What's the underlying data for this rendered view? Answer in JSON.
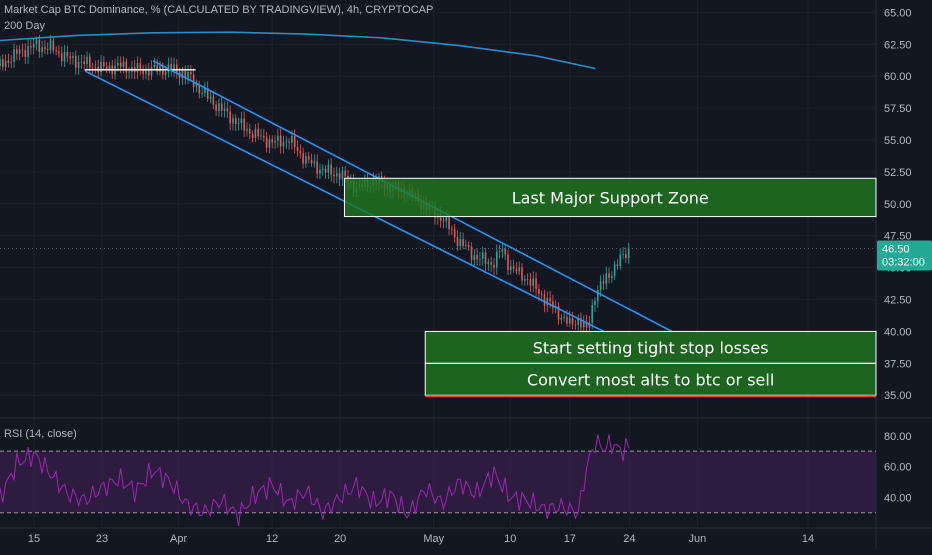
{
  "header": {
    "title": "Market Cap BTC Dominance, % (CALCULATED BY TRADINGVIEW), 4h, CRYPTOCAP",
    "ma_label": "200 Day",
    "rsi_label": "RSI (14, close)"
  },
  "price_badge": {
    "value": "46.50",
    "countdown": "03:32:00",
    "color": "#22ab94"
  },
  "colors": {
    "background": "#131722",
    "channel": "#2196f3",
    "ma": "#2b8cc4",
    "zone_fill": "#1f7a1f",
    "zone_border": "#ffffff",
    "stop_line": "#f44336",
    "rsi_line": "#9c27b0",
    "rsi_band": "#3a1f4d",
    "candle_up": "#26a69a",
    "candle_down": "#ef5350"
  },
  "chart_data": [
    {
      "type": "line",
      "title": "Market Cap BTC Dominance, % (CALCULATED BY TRADINGVIEW), 4h, CRYPTOCAP",
      "y_ticks": [
        "65.00",
        "62.50",
        "60.00",
        "57.50",
        "55.00",
        "52.50",
        "50.00",
        "47.50",
        "45.00",
        "42.50",
        "40.00",
        "37.50",
        "35.00"
      ],
      "ylim": [
        34,
        65.5
      ],
      "x_ticks": [
        "15",
        "23",
        "Apr",
        "12",
        "20",
        "May",
        "10",
        "17",
        "24",
        "Jun",
        "14"
      ],
      "x_tick_days": [
        0,
        8,
        17,
        28,
        36,
        47,
        56,
        63,
        70,
        78,
        91
      ],
      "xlim": [
        -4,
        99
      ],
      "series": [
        {
          "name": "BTC Dominance",
          "x": [
            -4,
            -2,
            0,
            2,
            4,
            6,
            8,
            10,
            12,
            14,
            16,
            18,
            20,
            22,
            24,
            26,
            28,
            30,
            32,
            34,
            36,
            38,
            40,
            42,
            44,
            46,
            48,
            50,
            52,
            54,
            55,
            56,
            58,
            60,
            62,
            63,
            64,
            65,
            66,
            68,
            70
          ],
          "y": [
            60.8,
            61.8,
            62.4,
            62.2,
            61.4,
            61.0,
            60.6,
            60.8,
            60.5,
            60.5,
            60.6,
            60.1,
            58.6,
            57.4,
            56.3,
            55.4,
            54.8,
            55.0,
            53.4,
            52.6,
            52.3,
            51.2,
            51.8,
            51.3,
            50.8,
            49.8,
            48.9,
            47.0,
            45.8,
            45.3,
            46.5,
            45.0,
            44.1,
            42.6,
            41.2,
            40.5,
            41.0,
            40.0,
            43.0,
            44.8,
            46.5
          ]
        },
        {
          "name": "200 Day",
          "x": [
            -4,
            5,
            14,
            23,
            32,
            41,
            50,
            59,
            66
          ],
          "y": [
            62.8,
            63.2,
            63.4,
            63.45,
            63.3,
            63.0,
            62.4,
            61.6,
            60.6
          ]
        }
      ],
      "annotations": [
        {
          "label": "Last Major Support Zone",
          "y_range": [
            49,
            52
          ]
        },
        {
          "label": "Start setting tight stop losses",
          "y_range": [
            37.5,
            40
          ]
        },
        {
          "label": "Convert most alts to btc or sell",
          "y_range": [
            35,
            37.5
          ]
        }
      ],
      "channel_upper": [
        [
          14,
          61.2
        ],
        [
          75,
          40
        ]
      ],
      "channel_lower": [
        [
          6,
          60.4
        ],
        [
          67,
          40
        ]
      ],
      "horizontal_line": {
        "y": 60.5,
        "x_range": [
          6,
          19
        ]
      }
    },
    {
      "type": "line",
      "title": "RSI (14, close)",
      "y_ticks": [
        "80.00",
        "60.00",
        "40.00"
      ],
      "ylim": [
        22,
        87
      ],
      "bands": [
        30,
        70
      ],
      "series": [
        {
          "name": "RSI",
          "x": [
            -4,
            -2,
            0,
            2,
            4,
            6,
            8,
            10,
            12,
            14,
            16,
            18,
            20,
            22,
            24,
            26,
            28,
            30,
            32,
            34,
            36,
            38,
            40,
            42,
            44,
            46,
            48,
            50,
            52,
            54,
            56,
            58,
            60,
            62,
            64,
            65,
            66,
            67,
            68,
            69,
            70
          ],
          "y": [
            40,
            62,
            68,
            55,
            42,
            38,
            46,
            52,
            44,
            58,
            50,
            35,
            30,
            38,
            28,
            42,
            48,
            36,
            44,
            30,
            40,
            48,
            36,
            42,
            28,
            46,
            36,
            50,
            42,
            56,
            40,
            38,
            32,
            34,
            30,
            60,
            76,
            72,
            75,
            70,
            73
          ]
        }
      ]
    }
  ]
}
